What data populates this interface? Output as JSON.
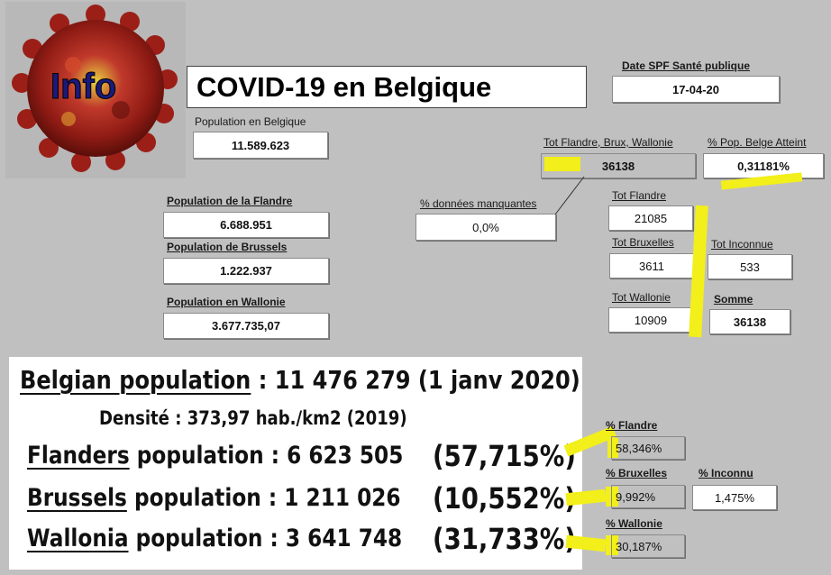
{
  "logo": {
    "text": "Info"
  },
  "title": "COVID-19 en Belgique",
  "population_belgique": {
    "label": "Population en Belgique",
    "value": "11.589.623"
  },
  "date": {
    "label": "Date SPF Santé publique",
    "value": "17-04-20"
  },
  "tot_fbw": {
    "label": "Tot Flandre, Brux, Wallonie",
    "value": "36138"
  },
  "pct_pop_atteint": {
    "label": "% Pop. Belge Atteint",
    "value": "0,31181%"
  },
  "pop_flandre": {
    "label": "Population de la Flandre",
    "value": "6.688.951"
  },
  "pop_brussels": {
    "label": "Population de Brussels",
    "value": "1.222.937"
  },
  "pop_wallonie": {
    "label": "Population en Wallonie",
    "value": "3.677.735,07"
  },
  "donnees_manquantes": {
    "label": "% données manquantes",
    "value": "0,0%"
  },
  "tot_flandre": {
    "label": "Tot Flandre",
    "value": "21085"
  },
  "tot_bruxelles": {
    "label": "Tot Bruxelles",
    "value": "3611"
  },
  "tot_inconnue": {
    "label": "Tot Inconnue",
    "value": "533"
  },
  "tot_wallonie": {
    "label": "Tot Wallonie",
    "value": "10909"
  },
  "somme": {
    "label": "Somme",
    "value": "36138"
  },
  "panel": {
    "belgian": {
      "name": "Belgian population",
      "rest": " : 11 476 279 (1 janv 2020)"
    },
    "densite": "Densité : 373,97 hab./km2 (2019)",
    "flanders": {
      "name": "Flanders",
      "rest": " population : 6 623 505",
      "pct": "(57,715%)"
    },
    "brussels": {
      "name": "Brussels",
      "rest": " population : 1 211 026",
      "pct": "(10,552%)"
    },
    "wallonia": {
      "name": "Wallonia",
      "rest": " population : 3 641 748",
      "pct": "(31,733%)"
    }
  },
  "pct_flandre": {
    "label": "% Flandre",
    "value": "58,346%"
  },
  "pct_bruxelles": {
    "label": "% Bruxelles",
    "value": "9,992%"
  },
  "pct_inconnu": {
    "label": "% Inconnu",
    "value": "1,475%"
  },
  "pct_wallonie": {
    "label": "% Wallonie",
    "value": "30,187%"
  },
  "colors": {
    "background": "#c0c0c0",
    "highlight": "#f2ef1a",
    "logo_red": "#a8241c"
  }
}
